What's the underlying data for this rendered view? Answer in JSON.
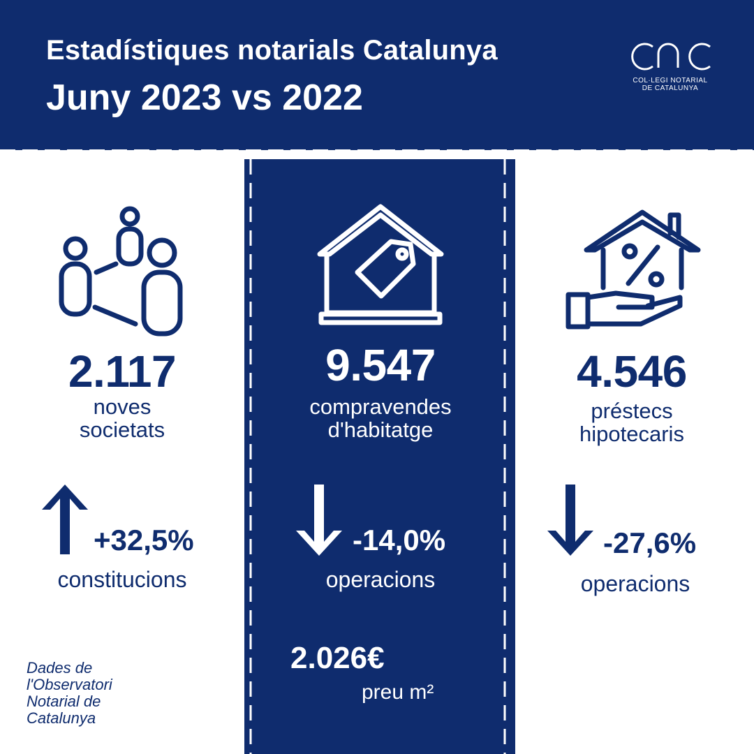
{
  "header": {
    "title": "Estadístiques notarials Catalunya",
    "subtitle": "Juny 2023 vs 2022",
    "logo_text_line1": "COL·LEGI NOTARIAL",
    "logo_text_line2": "DE CATALUNYA"
  },
  "colors": {
    "navy": "#0f2c6e",
    "white": "#ffffff"
  },
  "columns": [
    {
      "icon": "people-network-icon",
      "value": "2.117",
      "label": "noves\nsocietats",
      "trend": "up",
      "change": "+32,5%",
      "change_label": "constitucions"
    },
    {
      "icon": "house-price-tag-icon",
      "value": "9.547",
      "label": "compravendes\nd'habitatge",
      "trend": "down",
      "change": "-14,0%",
      "change_label": "operacions",
      "price": "2.026€",
      "price_label": "preu m²"
    },
    {
      "icon": "house-percent-hand-icon",
      "value": "4.546",
      "label": "préstecs\nhipotecaris",
      "trend": "down",
      "change": "-27,6%",
      "change_label": "operacions"
    }
  ],
  "source": "Dades de\nl'Observatori\nNotarial de\nCatalunya"
}
